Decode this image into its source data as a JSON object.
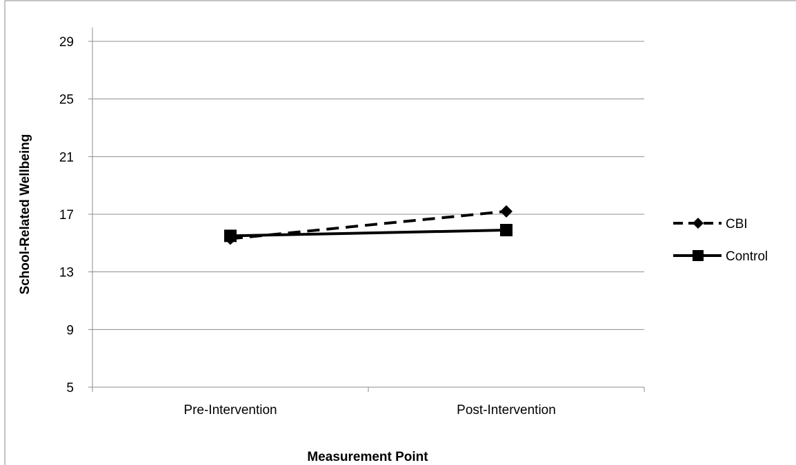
{
  "chart_data": {
    "type": "line",
    "title": "",
    "xlabel": "Measurement Point",
    "ylabel": "School-Related Wellbeing",
    "categories": [
      "Pre-Intervention",
      "Post-Intervention"
    ],
    "ylim": [
      5,
      29
    ],
    "yticks": [
      "5",
      "9",
      "13",
      "17",
      "21",
      "25",
      "29"
    ],
    "grid": true,
    "legend_position": "right",
    "series": [
      {
        "name": "CBI",
        "values": [
          15.3,
          17.2
        ],
        "line_style": "dashed",
        "marker": "diamond",
        "color": "#000000"
      },
      {
        "name": "Control",
        "values": [
          15.5,
          15.9
        ],
        "line_style": "solid",
        "marker": "square",
        "color": "#000000"
      }
    ]
  }
}
